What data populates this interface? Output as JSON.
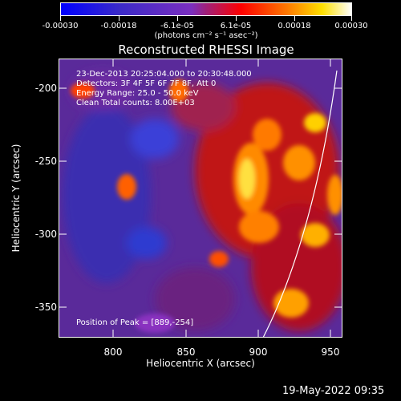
{
  "colorbar": {
    "ticks": [
      "-0.00030",
      "-0.00018",
      "-6.1e-05",
      "6.1e-05",
      "0.00018",
      "0.00030"
    ],
    "units": "(photons cm⁻² s⁻¹ asec⁻²)"
  },
  "plot": {
    "title": "Reconstructed RHESSI Image",
    "info": [
      "23-Dec-2013 20:25:04.000 to 20:30:48.000",
      "Detectors: 3F 4F 5F 6F 7F 8F, Att 0",
      "Energy Range: 25.0 - 50.0 keV",
      "Clean    Total counts: 8.00E+03"
    ],
    "peak_label": "Position of Peak = [889,-254]",
    "xlabel": "Heliocentric X (arcsec)",
    "ylabel": "Heliocentric Y (arcsec)",
    "xticks": [
      "800",
      "850",
      "900",
      "950"
    ],
    "yticks": [
      "-200",
      "-250",
      "-300",
      "-350"
    ]
  },
  "timestamp": "19-May-2022 09:35",
  "colors": {
    "background": "#000000",
    "colormap": [
      "#0000ff",
      "#4b2a9a",
      "#7b2fbf",
      "#ff0000",
      "#ff7a00",
      "#ffe000",
      "#ffffff"
    ]
  },
  "chart_data": {
    "type": "heatmap",
    "title": "Reconstructed RHESSI Image",
    "xlabel": "Heliocentric X (arcsec)",
    "ylabel": "Heliocentric Y (arcsec)",
    "xlim": [
      763,
      958
    ],
    "ylim": [
      -373,
      -183
    ],
    "x_ticks": [
      800,
      850,
      900,
      950
    ],
    "y_ticks": [
      -200,
      -250,
      -300,
      -350
    ],
    "colorbar_range": [
      -0.0003,
      0.0003
    ],
    "colorbar_ticks": [
      -0.0003,
      -0.00018,
      -6.1e-05,
      6.1e-05,
      0.00018,
      0.0003
    ],
    "peak_position": [
      889,
      -254
    ]
  }
}
